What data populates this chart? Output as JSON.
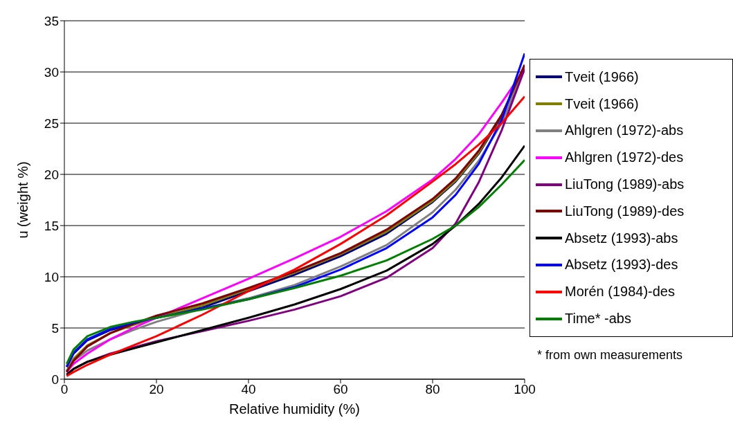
{
  "chart_data": {
    "type": "line",
    "xlabel": "Relative humidity (%)",
    "ylabel": "u (weight %)",
    "x": [
      0.5,
      2,
      5,
      10,
      15,
      20,
      30,
      40,
      50,
      60,
      70,
      80,
      85,
      90,
      95,
      100
    ],
    "xlim": [
      0,
      100
    ],
    "xticks": [
      0,
      20,
      40,
      60,
      80,
      100
    ],
    "ylim": [
      0,
      35
    ],
    "yticks": [
      0,
      5,
      10,
      15,
      20,
      25,
      30,
      35
    ],
    "grid": "y",
    "legend": "right",
    "marker": "none",
    "line_style": "solid",
    "annotations": [
      "* from own measurements"
    ],
    "series": [
      {
        "name": "Tveit (1966)",
        "color": "#000080",
        "values": [
          1.2,
          2.5,
          3.8,
          4.8,
          5.4,
          6.0,
          7.0,
          8.6,
          10.2,
          12.0,
          14.2,
          17.3,
          19.3,
          22.0,
          25.7,
          30.5
        ]
      },
      {
        "name": "Tveit (1966)",
        "color": "#808000",
        "values": [
          0.8,
          2.0,
          3.3,
          4.5,
          5.3,
          6.0,
          7.2,
          8.8,
          10.4,
          12.2,
          14.4,
          17.4,
          19.4,
          22.1,
          25.8,
          30.3
        ]
      },
      {
        "name": "Ahlgren (1972)-abs",
        "color": "#808080",
        "values": [
          0.8,
          1.8,
          2.8,
          3.9,
          4.8,
          5.6,
          6.9,
          7.9,
          9.2,
          11.0,
          13.1,
          16.3,
          18.5,
          21.3,
          25.0,
          30.4
        ]
      },
      {
        "name": "Ahlgren (1972)-des",
        "color": "#ff00ff",
        "values": [
          0.7,
          1.5,
          2.5,
          3.9,
          5.0,
          6.0,
          7.9,
          9.8,
          11.8,
          13.9,
          16.4,
          19.5,
          21.5,
          23.9,
          27.0,
          30.3
        ]
      },
      {
        "name": "LiuTong (1989)-abs",
        "color": "#800080",
        "values": [
          0.5,
          1.0,
          1.7,
          2.5,
          3.1,
          3.7,
          4.7,
          5.7,
          6.8,
          8.1,
          9.9,
          12.8,
          15.2,
          19.2,
          24.3,
          30.3
        ]
      },
      {
        "name": "LiuTong (1989)-des",
        "color": "#800000",
        "values": [
          0.7,
          1.8,
          3.2,
          4.5,
          5.4,
          6.2,
          7.4,
          8.9,
          10.5,
          12.3,
          14.6,
          17.6,
          19.6,
          22.3,
          25.8,
          30.7
        ]
      },
      {
        "name": "Absetz (1993)-abs",
        "color": "#000000",
        "values": [
          0.4,
          1.0,
          1.7,
          2.4,
          3.0,
          3.6,
          4.8,
          6.0,
          7.3,
          8.8,
          10.6,
          13.2,
          15.0,
          17.1,
          19.7,
          22.8
        ]
      },
      {
        "name": "Absetz (1993)-des",
        "color": "#0000ff",
        "values": [
          1.2,
          2.6,
          3.9,
          4.9,
          5.5,
          6.0,
          6.9,
          7.8,
          9.0,
          10.7,
          12.8,
          15.8,
          18.0,
          21.0,
          25.3,
          31.8
        ]
      },
      {
        "name": "Morén (1984)-des",
        "color": "#ff0000",
        "values": [
          0.3,
          0.7,
          1.4,
          2.4,
          3.3,
          4.2,
          6.3,
          8.6,
          10.7,
          13.2,
          16.0,
          19.3,
          21.0,
          22.9,
          25.0,
          27.6
        ]
      },
      {
        "name": "Time* -abs",
        "color": "#008000",
        "values": [
          1.5,
          2.9,
          4.2,
          5.1,
          5.6,
          6.0,
          6.8,
          7.8,
          8.9,
          10.1,
          11.6,
          13.7,
          15.0,
          16.8,
          19.0,
          21.4
        ]
      }
    ]
  }
}
